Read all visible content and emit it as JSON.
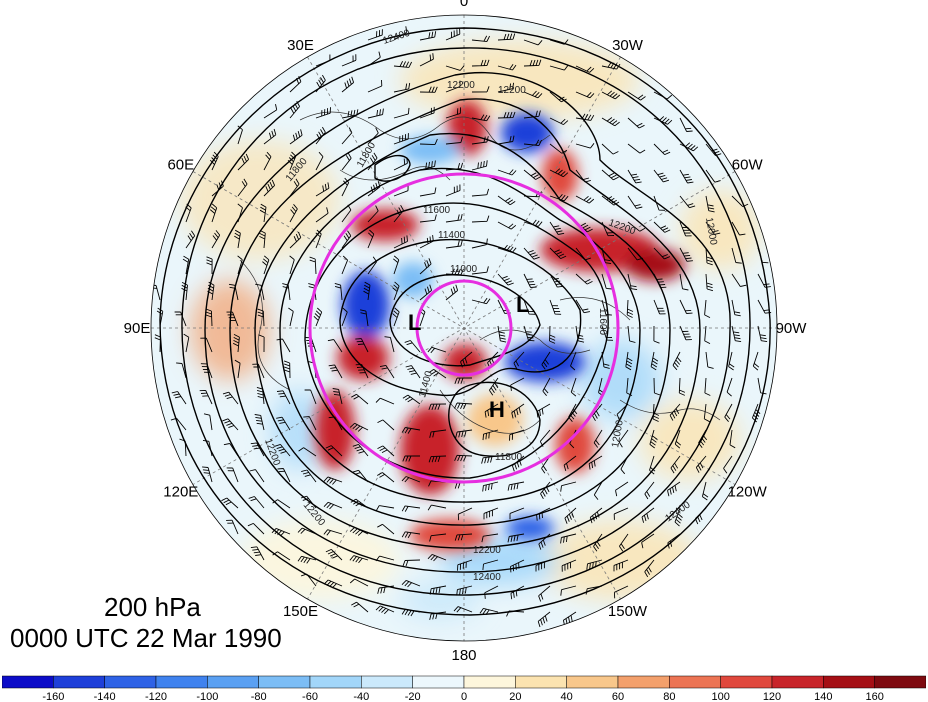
{
  "map": {
    "projection": "polar-stereographic-north",
    "longitude_labels": [
      {
        "text": "0",
        "lon": 0
      },
      {
        "text": "30W",
        "lon": -30
      },
      {
        "text": "60W",
        "lon": -60
      },
      {
        "text": "90W",
        "lon": -90
      },
      {
        "text": "120W",
        "lon": -120
      },
      {
        "text": "150W",
        "lon": -150
      },
      {
        "text": "180",
        "lon": 180
      },
      {
        "text": "150E",
        "lon": 150
      },
      {
        "text": "120E",
        "lon": 120
      },
      {
        "text": "90E",
        "lon": 90
      },
      {
        "text": "60E",
        "lon": 60
      },
      {
        "text": "30E",
        "lon": 30
      }
    ],
    "contour_labels": [
      "12400",
      "12200",
      "12200",
      "11800",
      "11600",
      "11400",
      "11000",
      "11600",
      "11800",
      "12000",
      "12200",
      "12200",
      "12400",
      "12400",
      "12200",
      "12000",
      "11800",
      "11400",
      "12200"
    ],
    "pressure_centers": [
      {
        "type": "L",
        "text": "L"
      },
      {
        "type": "L",
        "text": "L"
      },
      {
        "type": "H",
        "text": "H"
      }
    ],
    "colors": {
      "ring": "#e62ee0",
      "contour": "#000000",
      "positive_max": "#a50f15",
      "negative_max": "#0a0ad0",
      "coast": "#333333"
    }
  },
  "title": {
    "level": "200 hPa",
    "timestamp": "0000 UTC 22 Mar 1990"
  },
  "colorbar": {
    "labels": [
      "-160",
      "-140",
      "-120",
      "-100",
      "-80",
      "-60",
      "-40",
      "-20",
      "0",
      "20",
      "40",
      "60",
      "80",
      "100",
      "120",
      "140",
      "160"
    ],
    "colors": [
      "#0c0cc8",
      "#1e3fd9",
      "#2e62e6",
      "#3f82ee",
      "#5aa0f2",
      "#7cbdf5",
      "#a2d6f9",
      "#cbe9fb",
      "#ecf7fc",
      "#fdf6dc",
      "#fbe3b0",
      "#f8c78b",
      "#f3a06c",
      "#ec7454",
      "#e0483d",
      "#c8242a",
      "#a50f15",
      "#7e0a10"
    ]
  }
}
